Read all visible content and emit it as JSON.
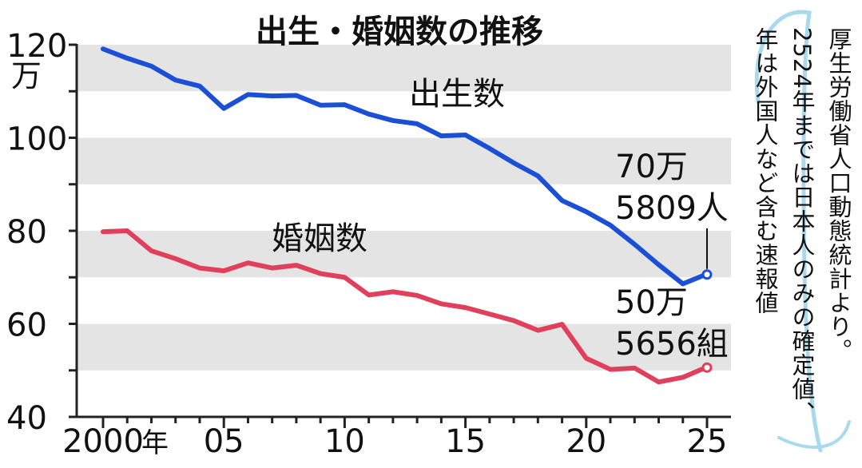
{
  "chart_data": {
    "type": "line",
    "title": "出生・婚姻数の推移",
    "y_unit": "万",
    "x_suffix": "年",
    "ylim": [
      40,
      125
    ],
    "y_ticks": [
      40,
      60,
      80,
      100,
      120
    ],
    "y_tick_labels": [
      "40",
      "60",
      "80",
      "100",
      "120"
    ],
    "x_ticks": [
      2000,
      2005,
      2010,
      2015,
      2020,
      2025
    ],
    "x_tick_labels": [
      "2000",
      "05",
      "10",
      "15",
      "20",
      "25"
    ],
    "grid": "horizontal gray bands",
    "legend": "inline labels",
    "x": [
      2000,
      2001,
      2002,
      2003,
      2004,
      2005,
      2006,
      2007,
      2008,
      2009,
      2010,
      2011,
      2012,
      2013,
      2014,
      2015,
      2016,
      2017,
      2018,
      2019,
      2020,
      2021,
      2022,
      2023,
      2024,
      2025
    ],
    "series": [
      {
        "name": "出生数",
        "color": "#1a4fd6",
        "values": [
          119.1,
          117.1,
          115.4,
          112.4,
          111.1,
          106.3,
          109.3,
          109.0,
          109.1,
          107.0,
          107.1,
          105.1,
          103.7,
          103.0,
          100.4,
          100.6,
          97.7,
          94.6,
          91.8,
          86.5,
          84.1,
          81.2,
          77.1,
          72.7,
          68.6,
          70.6
        ],
        "end_value_label": [
          "70万",
          "5809人"
        ]
      },
      {
        "name": "婚姻数",
        "color": "#e0405c",
        "values": [
          79.8,
          80.0,
          75.7,
          74.0,
          72.0,
          71.4,
          73.1,
          72.0,
          72.6,
          70.8,
          70.0,
          66.2,
          66.9,
          66.1,
          64.3,
          63.5,
          62.1,
          60.7,
          58.6,
          59.9,
          52.6,
          50.2,
          50.5,
          47.5,
          48.5,
          50.6
        ],
        "end_value_label": [
          "50万",
          "5656組"
        ]
      }
    ]
  },
  "note": {
    "lines": [
      "厚生労働省人口動態統計より。",
      "2524年までは日本人のみの確定値、",
      "年は外国人など含む速報値"
    ]
  },
  "colors": {
    "band": "#e4e4e4",
    "axis": "#222222",
    "scribble": "#a9d9ec"
  }
}
